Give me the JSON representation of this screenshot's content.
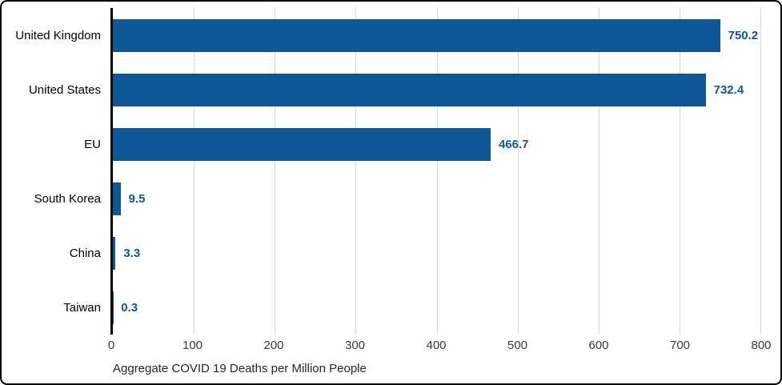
{
  "chart_data": {
    "type": "bar",
    "orientation": "horizontal",
    "categories": [
      "United Kingdom",
      "United States",
      "EU",
      "South Korea",
      "China",
      "Taiwan"
    ],
    "values": [
      750.2,
      732.4,
      466.7,
      9.5,
      3.3,
      0.3
    ],
    "value_labels": [
      "750.2",
      "732.4",
      "466.7",
      "9.5",
      "3.3",
      "0.3"
    ],
    "title": "",
    "xlabel": "Aggregate COVID 19 Deaths per Million People",
    "ylabel": "",
    "xlim": [
      0,
      800
    ],
    "xticks": [
      0,
      100,
      200,
      300,
      400,
      500,
      600,
      700,
      800
    ],
    "grid": "vertical-only",
    "legend": "none",
    "colors": {
      "bar": "#0D5796",
      "value_label": "#0D5796",
      "gridline": "#D6D6D6",
      "axis_line": "#000000",
      "tick_label": "#3B3B3B",
      "category_label": "#000000",
      "axis_title": "#262626",
      "figure_border": "#000000",
      "background": "#FFFFFF"
    }
  }
}
